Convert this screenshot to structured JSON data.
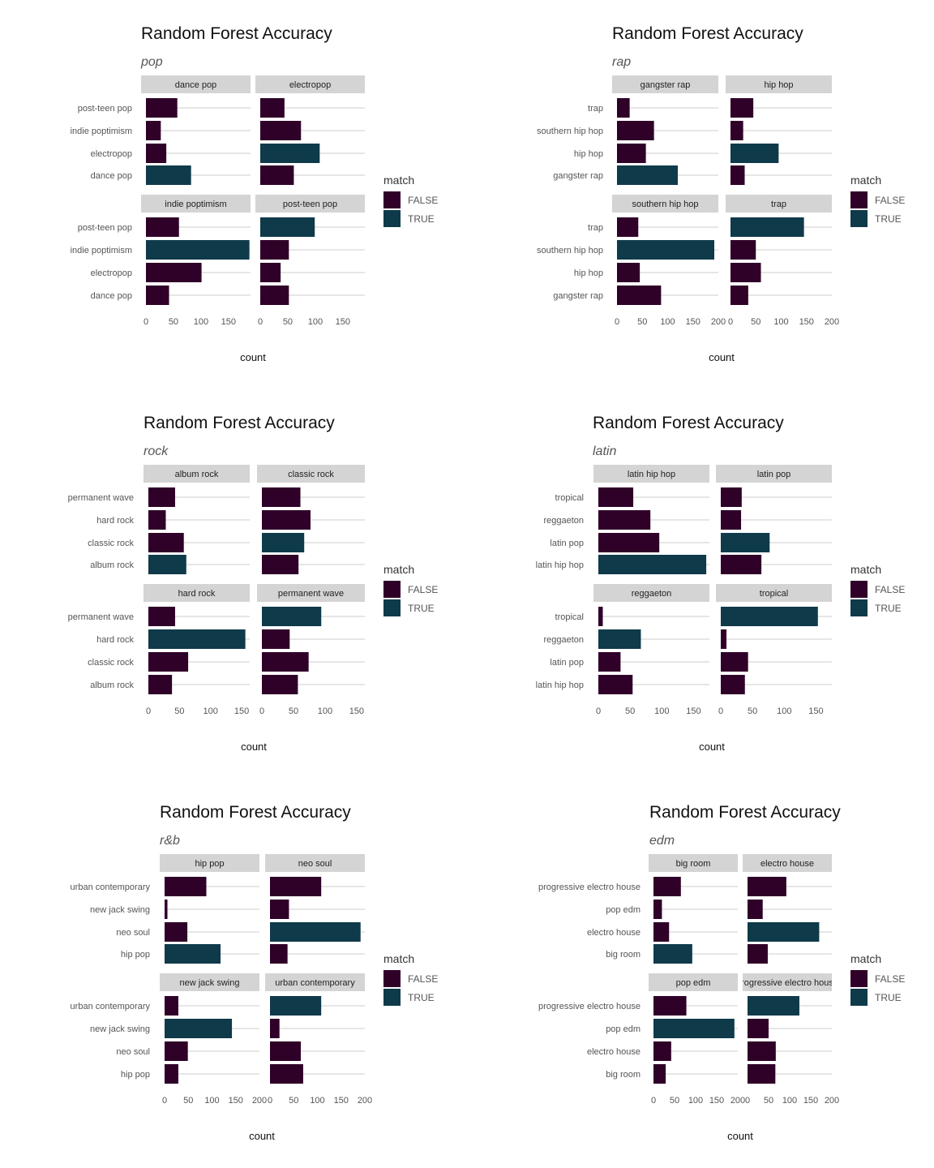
{
  "colors": {
    "FALSE": "#2f0028",
    "TRUE": "#0f3a4a",
    "strip": "#d4d4d4",
    "grid": "#cccccc"
  },
  "chart_data": [
    {
      "type": "bar",
      "title": "Random Forest Accuracy",
      "subtitle": "pop",
      "xlabel": "count",
      "ylabel": "",
      "legend": {
        "title": "match",
        "entries": [
          "FALSE",
          "TRUE"
        ],
        "placement": "right"
      },
      "categories": [
        "post-teen pop",
        "indie poptimism",
        "electropop",
        "dance pop"
      ],
      "xlim": [
        0,
        190
      ],
      "xticks": [
        0,
        50,
        100,
        150
      ],
      "panels": [
        {
          "name": "dance pop",
          "values": [
            57,
            27,
            37,
            82
          ],
          "match": [
            "FALSE",
            "FALSE",
            "FALSE",
            "TRUE"
          ]
        },
        {
          "name": "electropop",
          "values": [
            44,
            74,
            108,
            61
          ],
          "match": [
            "FALSE",
            "FALSE",
            "TRUE",
            "FALSE"
          ]
        },
        {
          "name": "indie poptimism",
          "values": [
            60,
            188,
            101,
            42
          ],
          "match": [
            "FALSE",
            "TRUE",
            "FALSE",
            "FALSE"
          ]
        },
        {
          "name": "post-teen pop",
          "values": [
            99,
            52,
            37,
            52
          ],
          "match": [
            "TRUE",
            "FALSE",
            "FALSE",
            "FALSE"
          ]
        }
      ]
    },
    {
      "type": "bar",
      "title": "Random Forest Accuracy",
      "subtitle": "rap",
      "xlabel": "count",
      "ylabel": "",
      "legend": {
        "title": "match",
        "entries": [
          "FALSE",
          "TRUE"
        ],
        "placement": "right"
      },
      "categories": [
        "trap",
        "southern hip hop",
        "hip hop",
        "gangster rap"
      ],
      "xlim": [
        0,
        200
      ],
      "xticks": [
        0,
        50,
        100,
        150,
        200
      ],
      "panels": [
        {
          "name": "gangster rap",
          "values": [
            25,
            73,
            57,
            120
          ],
          "match": [
            "FALSE",
            "FALSE",
            "FALSE",
            "TRUE"
          ]
        },
        {
          "name": "hip hop",
          "values": [
            45,
            25,
            95,
            28
          ],
          "match": [
            "FALSE",
            "FALSE",
            "TRUE",
            "FALSE"
          ]
        },
        {
          "name": "southern hip hop",
          "values": [
            42,
            192,
            45,
            87
          ],
          "match": [
            "FALSE",
            "TRUE",
            "FALSE",
            "FALSE"
          ]
        },
        {
          "name": "trap",
          "values": [
            145,
            50,
            60,
            35
          ],
          "match": [
            "TRUE",
            "FALSE",
            "FALSE",
            "FALSE"
          ]
        }
      ]
    },
    {
      "type": "bar",
      "title": "Random Forest Accuracy",
      "subtitle": "rock",
      "xlabel": "count",
      "ylabel": "",
      "legend": {
        "title": "match",
        "entries": [
          "FALSE",
          "TRUE"
        ],
        "placement": "right"
      },
      "categories": [
        "permanent wave",
        "hard rock",
        "classic rock",
        "album rock"
      ],
      "xlim": [
        0,
        163
      ],
      "xticks": [
        0,
        50,
        100,
        150
      ],
      "panels": [
        {
          "name": "album rock",
          "values": [
            43,
            28,
            57,
            61
          ],
          "match": [
            "FALSE",
            "FALSE",
            "FALSE",
            "TRUE"
          ]
        },
        {
          "name": "classic rock",
          "values": [
            61,
            77,
            67,
            58
          ],
          "match": [
            "FALSE",
            "FALSE",
            "TRUE",
            "FALSE"
          ]
        },
        {
          "name": "hard rock",
          "values": [
            43,
            156,
            64,
            38
          ],
          "match": [
            "FALSE",
            "TRUE",
            "FALSE",
            "FALSE"
          ]
        },
        {
          "name": "permanent wave",
          "values": [
            94,
            44,
            74,
            57
          ],
          "match": [
            "TRUE",
            "FALSE",
            "FALSE",
            "FALSE"
          ]
        }
      ]
    },
    {
      "type": "bar",
      "title": "Random Forest Accuracy",
      "subtitle": "latin",
      "xlabel": "count",
      "ylabel": "",
      "legend": {
        "title": "match",
        "entries": [
          "FALSE",
          "TRUE"
        ],
        "placement": "right"
      },
      "categories": [
        "tropical",
        "reggaeton",
        "latin pop",
        "latin hip hop"
      ],
      "xlim": [
        0,
        175
      ],
      "xticks": [
        0,
        50,
        100,
        150
      ],
      "panels": [
        {
          "name": "latin hip hop",
          "values": [
            55,
            82,
            96,
            170
          ],
          "match": [
            "FALSE",
            "FALSE",
            "FALSE",
            "TRUE"
          ]
        },
        {
          "name": "latin pop",
          "values": [
            33,
            32,
            77,
            64
          ],
          "match": [
            "FALSE",
            "FALSE",
            "TRUE",
            "FALSE"
          ]
        },
        {
          "name": "reggaeton",
          "values": [
            7,
            67,
            35,
            54
          ],
          "match": [
            "FALSE",
            "TRUE",
            "FALSE",
            "FALSE"
          ]
        },
        {
          "name": "tropical",
          "values": [
            153,
            9,
            43,
            38
          ],
          "match": [
            "TRUE",
            "FALSE",
            "FALSE",
            "FALSE"
          ]
        }
      ]
    },
    {
      "type": "bar",
      "title": "Random Forest Accuracy",
      "subtitle": "r&b",
      "xlabel": "count",
      "ylabel": "",
      "legend": {
        "title": "match",
        "entries": [
          "FALSE",
          "TRUE"
        ],
        "placement": "right"
      },
      "categories": [
        "urban contemporary",
        "new jack swing",
        "neo soul",
        "hip pop"
      ],
      "xlim": [
        0,
        200
      ],
      "xticks": [
        0,
        50,
        100,
        150,
        200
      ],
      "panels": [
        {
          "name": "hip pop",
          "values": [
            88,
            6,
            48,
            118
          ],
          "match": [
            "FALSE",
            "FALSE",
            "FALSE",
            "TRUE"
          ]
        },
        {
          "name": "neo soul",
          "values": [
            108,
            40,
            191,
            37
          ],
          "match": [
            "FALSE",
            "FALSE",
            "TRUE",
            "FALSE"
          ]
        },
        {
          "name": "new jack swing",
          "values": [
            29,
            142,
            49,
            29
          ],
          "match": [
            "FALSE",
            "TRUE",
            "FALSE",
            "FALSE"
          ]
        },
        {
          "name": "urban contemporary",
          "values": [
            108,
            20,
            65,
            70
          ],
          "match": [
            "TRUE",
            "FALSE",
            "FALSE",
            "FALSE"
          ]
        }
      ]
    },
    {
      "type": "bar",
      "title": "Random Forest Accuracy",
      "subtitle": "edm",
      "xlabel": "count",
      "ylabel": "",
      "legend": {
        "title": "match",
        "entries": [
          "FALSE",
          "TRUE"
        ],
        "placement": "right"
      },
      "categories": [
        "progressive electro house",
        "pop edm",
        "electro house",
        "big room"
      ],
      "xlim": [
        0,
        200
      ],
      "xticks": [
        0,
        50,
        100,
        150,
        200
      ],
      "panels": [
        {
          "name": "big room",
          "values": [
            65,
            20,
            37,
            92
          ],
          "match": [
            "FALSE",
            "FALSE",
            "FALSE",
            "TRUE"
          ]
        },
        {
          "name": "electro house",
          "values": [
            92,
            36,
            170,
            48
          ],
          "match": [
            "FALSE",
            "FALSE",
            "TRUE",
            "FALSE"
          ]
        },
        {
          "name": "pop edm",
          "values": [
            78,
            192,
            42,
            29
          ],
          "match": [
            "FALSE",
            "TRUE",
            "FALSE",
            "FALSE"
          ]
        },
        {
          "name": "progressive electro house",
          "values": [
            123,
            50,
            67,
            66
          ],
          "match": [
            "TRUE",
            "FALSE",
            "FALSE",
            "FALSE"
          ]
        }
      ]
    }
  ]
}
